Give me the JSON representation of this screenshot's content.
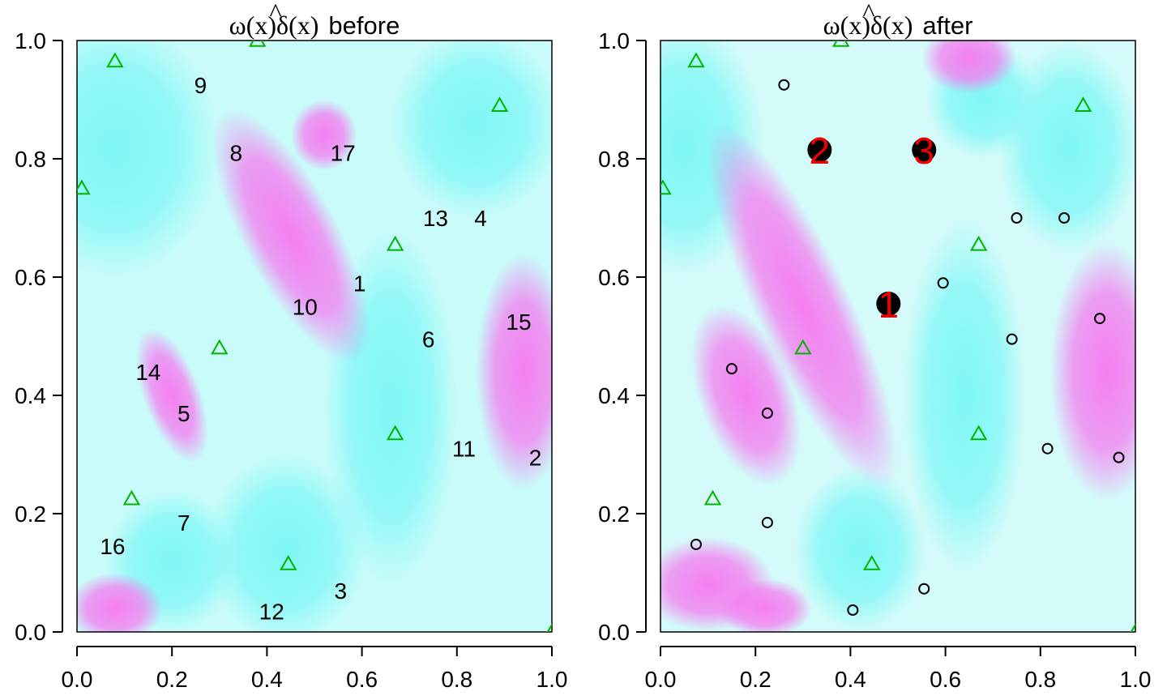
{
  "chart_data": [
    {
      "type": "heatmap",
      "title": {
        "prefix": "ω(x)",
        "hat": "^",
        "delta": "δ(x)",
        "word": "before"
      },
      "xlim": [
        0,
        1
      ],
      "ylim": [
        0,
        1
      ],
      "x_ticks": [
        "0.0",
        "0.2",
        "0.4",
        "0.6",
        "0.8",
        "1.0"
      ],
      "y_ticks": [
        "0.0",
        "0.2",
        "0.4",
        "0.6",
        "0.8",
        "1.0"
      ],
      "grid": false,
      "colors": {
        "negative": "#7ff7f5",
        "positive": "#f47ef0",
        "zero": "#ffffff"
      },
      "design_points": [
        {
          "x": 0.38,
          "y": 1.0
        },
        {
          "x": 0.08,
          "y": 0.965
        },
        {
          "x": 0.89,
          "y": 0.89
        },
        {
          "x": 0.01,
          "y": 0.75
        },
        {
          "x": 0.67,
          "y": 0.655
        },
        {
          "x": 0.3,
          "y": 0.48
        },
        {
          "x": 0.67,
          "y": 0.335
        },
        {
          "x": 0.115,
          "y": 0.225
        },
        {
          "x": 0.445,
          "y": 0.115
        },
        {
          "x": 1.0,
          "y": 0.0
        }
      ],
      "labels": [
        {
          "text": "9",
          "x": 0.26,
          "y": 0.925
        },
        {
          "text": "8",
          "x": 0.335,
          "y": 0.81
        },
        {
          "text": "17",
          "x": 0.56,
          "y": 0.81
        },
        {
          "text": "13",
          "x": 0.755,
          "y": 0.7
        },
        {
          "text": "4",
          "x": 0.85,
          "y": 0.7
        },
        {
          "text": "1",
          "x": 0.595,
          "y": 0.59
        },
        {
          "text": "10",
          "x": 0.48,
          "y": 0.55
        },
        {
          "text": "15",
          "x": 0.93,
          "y": 0.525
        },
        {
          "text": "6",
          "x": 0.74,
          "y": 0.495
        },
        {
          "text": "14",
          "x": 0.15,
          "y": 0.44
        },
        {
          "text": "5",
          "x": 0.225,
          "y": 0.37
        },
        {
          "text": "11",
          "x": 0.815,
          "y": 0.31
        },
        {
          "text": "2",
          "x": 0.965,
          "y": 0.295
        },
        {
          "text": "7",
          "x": 0.225,
          "y": 0.185
        },
        {
          "text": "16",
          "x": 0.075,
          "y": 0.145
        },
        {
          "text": "3",
          "x": 0.555,
          "y": 0.07
        },
        {
          "text": "12",
          "x": 0.41,
          "y": 0.035
        }
      ]
    },
    {
      "type": "heatmap",
      "title": {
        "prefix": "ω(x)",
        "hat": "^",
        "delta": "δ(x)",
        "word": "after"
      },
      "xlim": [
        0,
        1
      ],
      "ylim": [
        0,
        1
      ],
      "x_ticks": [
        "0.0",
        "0.2",
        "0.4",
        "0.6",
        "0.8",
        "1.0"
      ],
      "y_ticks": [
        "0.0",
        "0.2",
        "0.4",
        "0.6",
        "0.8",
        "1.0"
      ],
      "grid": false,
      "colors": {
        "negative": "#7ff7f5",
        "positive": "#f47ef0",
        "zero": "#ffffff"
      },
      "design_points": [
        {
          "x": 0.38,
          "y": 1.0
        },
        {
          "x": 0.075,
          "y": 0.965
        },
        {
          "x": 0.89,
          "y": 0.89
        },
        {
          "x": 0.005,
          "y": 0.75
        },
        {
          "x": 0.67,
          "y": 0.655
        },
        {
          "x": 0.3,
          "y": 0.48
        },
        {
          "x": 0.67,
          "y": 0.335
        },
        {
          "x": 0.11,
          "y": 0.225
        },
        {
          "x": 0.445,
          "y": 0.115
        },
        {
          "x": 1.0,
          "y": 0.0
        }
      ],
      "candidate_points": [
        {
          "x": 0.26,
          "y": 0.925
        },
        {
          "x": 0.75,
          "y": 0.7
        },
        {
          "x": 0.85,
          "y": 0.7
        },
        {
          "x": 0.595,
          "y": 0.59
        },
        {
          "x": 0.925,
          "y": 0.53
        },
        {
          "x": 0.74,
          "y": 0.495
        },
        {
          "x": 0.15,
          "y": 0.445
        },
        {
          "x": 0.225,
          "y": 0.37
        },
        {
          "x": 0.815,
          "y": 0.31
        },
        {
          "x": 0.965,
          "y": 0.295
        },
        {
          "x": 0.225,
          "y": 0.185
        },
        {
          "x": 0.075,
          "y": 0.148
        },
        {
          "x": 0.555,
          "y": 0.073
        },
        {
          "x": 0.405,
          "y": 0.037
        }
      ],
      "selected_points": [
        {
          "text": "1",
          "x": 0.48,
          "y": 0.555
        },
        {
          "text": "2",
          "x": 0.335,
          "y": 0.815
        },
        {
          "text": "3",
          "x": 0.555,
          "y": 0.815
        }
      ]
    }
  ]
}
